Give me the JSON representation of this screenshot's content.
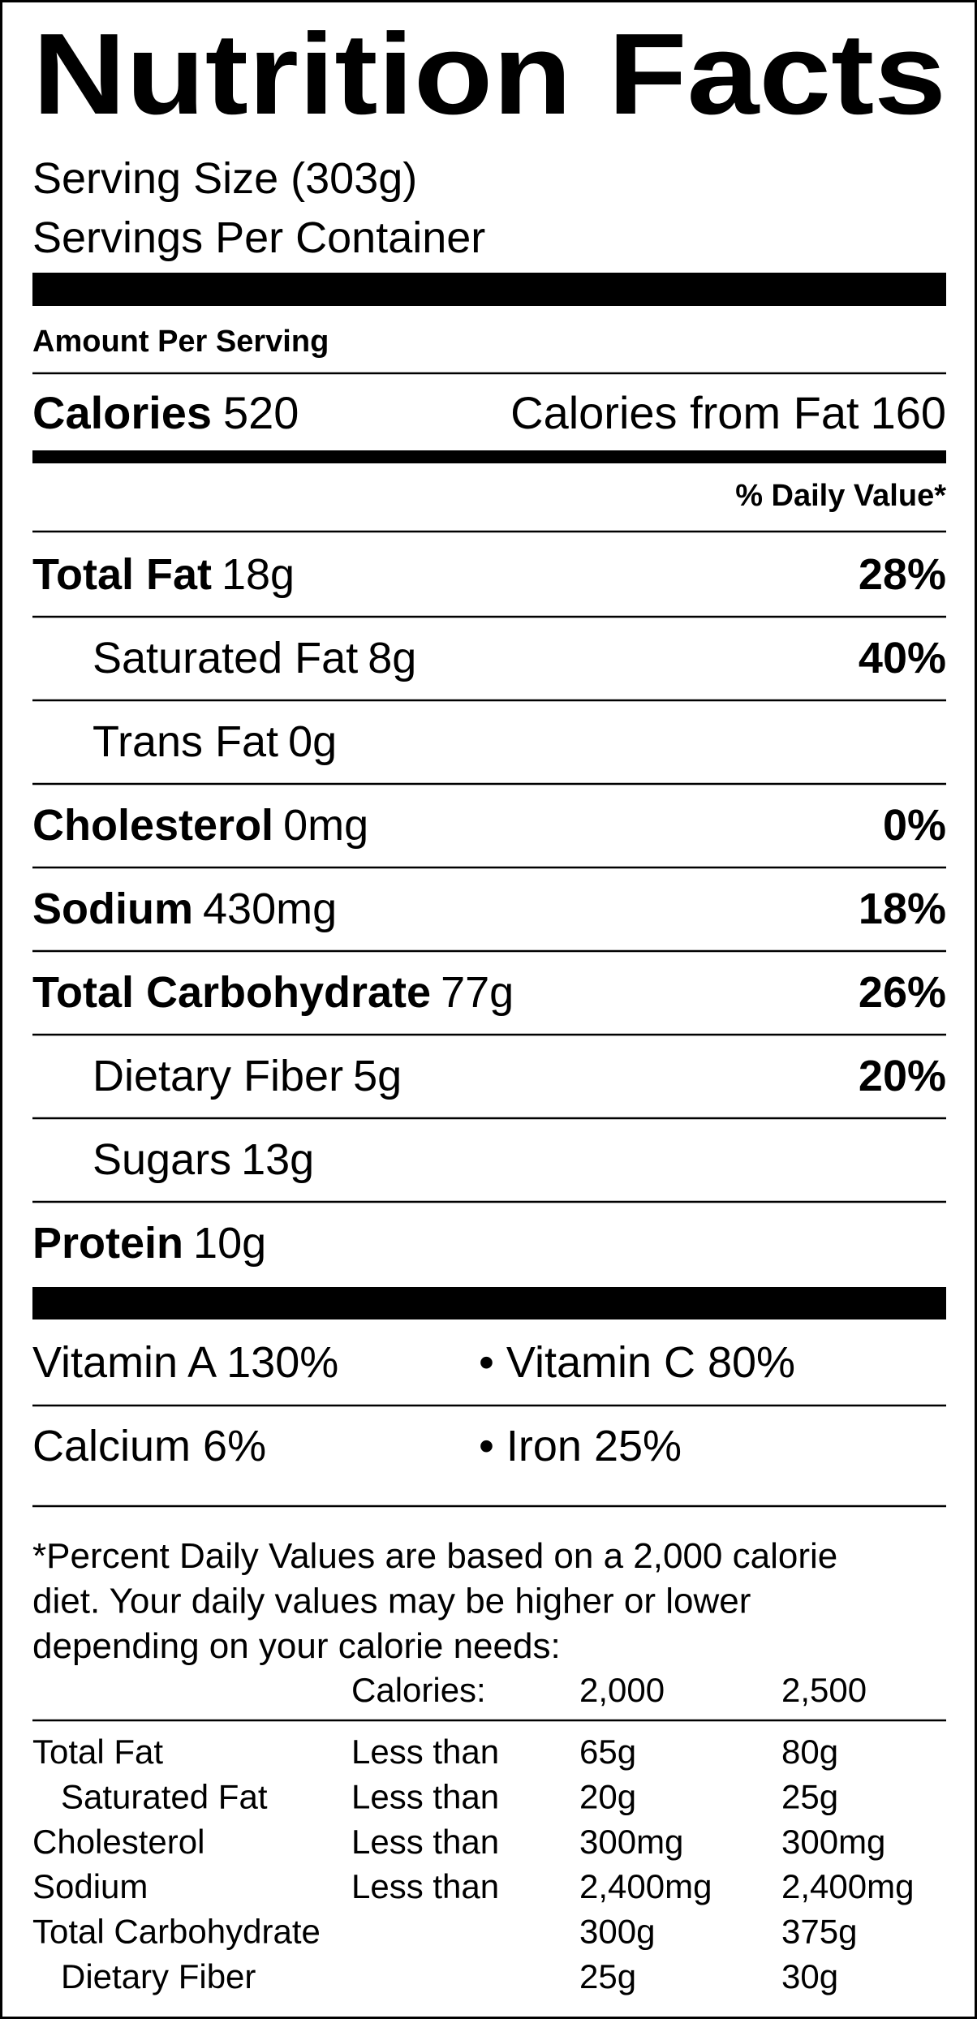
{
  "title": "Nutrition Facts",
  "serving_size": "Serving Size (303g)",
  "servings_per_container": "Servings Per Container",
  "amount_per_serving": "Amount Per Serving",
  "calories": {
    "label": "Calories",
    "value": "520"
  },
  "calories_from_fat": {
    "label": "Calories from Fat",
    "value": "160"
  },
  "daily_value_header": "% Daily Value*",
  "nutrients": [
    {
      "name": "Total Fat",
      "amount": "18g",
      "percent": "28%",
      "sub": false
    },
    {
      "name": "Saturated Fat",
      "amount": "8g",
      "percent": "40%",
      "sub": true
    },
    {
      "name": "Trans Fat",
      "amount": "0g",
      "sub": true
    },
    {
      "name": "Cholesterol",
      "amount": "0mg",
      "percent": "0%",
      "sub": false
    },
    {
      "name": "Sodium",
      "amount": "430mg",
      "percent": "18%",
      "sub": false
    },
    {
      "name": "Total Carbohydrate",
      "amount": "77g",
      "percent": "26%",
      "sub": false
    },
    {
      "name": "Dietary Fiber",
      "amount": "5g",
      "percent": "20%",
      "sub": true
    },
    {
      "name": "Sugars",
      "amount": "13g",
      "sub": true
    },
    {
      "name": "Protein",
      "amount": "10g",
      "sub": false
    }
  ],
  "vitamins": [
    [
      "Vitamin A 130%",
      "• Vitamin C 80%"
    ],
    [
      "Calcium 6%",
      "• Iron 25%"
    ]
  ],
  "footnote": [
    "*Percent Daily Values are based on a 2,000 calorie",
    "diet. Your daily values may be higher or lower",
    "depending on your calorie needs:"
  ],
  "footnote_table": {
    "header": {
      "label": "Calories:",
      "columns": [
        "2,000",
        "2,500"
      ]
    },
    "rows": [
      {
        "name": "Total Fat",
        "qualifier": "Less than",
        "values": [
          "65g",
          "80g"
        ],
        "sub": false
      },
      {
        "name": "Saturated Fat",
        "qualifier": "Less than",
        "values": [
          "20g",
          "25g"
        ],
        "sub": true
      },
      {
        "name": "Cholesterol",
        "qualifier": "Less than",
        "values": [
          "300mg",
          "300mg"
        ],
        "sub": false
      },
      {
        "name": "Sodium",
        "qualifier": "Less than",
        "values": [
          "2,400mg",
          "2,400mg"
        ],
        "sub": false
      },
      {
        "name": "Total Carbohydrate",
        "values": [
          "300g",
          "375g"
        ],
        "sub": false
      },
      {
        "name": "Dietary Fiber",
        "values": [
          "25g",
          "30g"
        ],
        "sub": true
      }
    ]
  }
}
